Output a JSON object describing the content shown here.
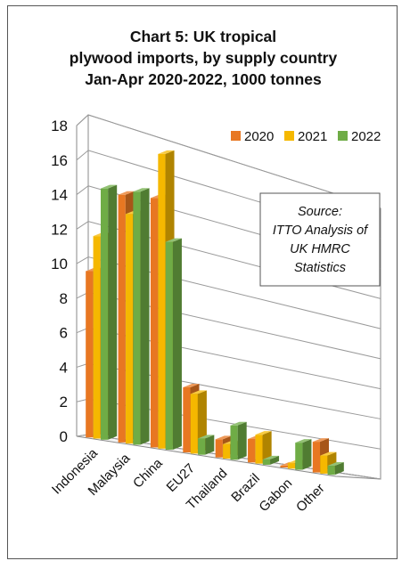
{
  "chart_data": {
    "type": "bar",
    "title_lines": [
      "Chart 5: UK tropical",
      "plywood imports, by supply country",
      "Jan-Apr 2020-2022, 1000 tonnes"
    ],
    "categories": [
      "Indonesia",
      "Malaysia",
      "China",
      "EU27",
      "Thailand",
      "Brazil",
      "Gabon",
      "Other"
    ],
    "series": [
      {
        "name": "2020",
        "color": "#E87722",
        "values": [
          9.2,
          13.7,
          13.8,
          3.6,
          1.0,
          1.3,
          0.1,
          1.7
        ]
      },
      {
        "name": "2021",
        "color": "#F5B800",
        "values": [
          11.2,
          12.7,
          16.3,
          3.3,
          0.8,
          1.6,
          0.3,
          1.0
        ]
      },
      {
        "name": "2022",
        "color": "#6FAC46",
        "values": [
          13.9,
          14.0,
          11.5,
          0.9,
          1.9,
          0.3,
          1.5,
          0.5
        ]
      }
    ],
    "y_ticks": [
      "0",
      "2",
      "4",
      "6",
      "8",
      "10",
      "12",
      "14",
      "16",
      "18"
    ],
    "ylim": [
      0,
      18
    ],
    "xlabel": "",
    "ylabel": "",
    "grid": true,
    "legend_position": "top-right",
    "annotation": {
      "lines": [
        "Source:",
        "ITTO Analysis of",
        "UK HMRC",
        "Statistics"
      ]
    }
  }
}
